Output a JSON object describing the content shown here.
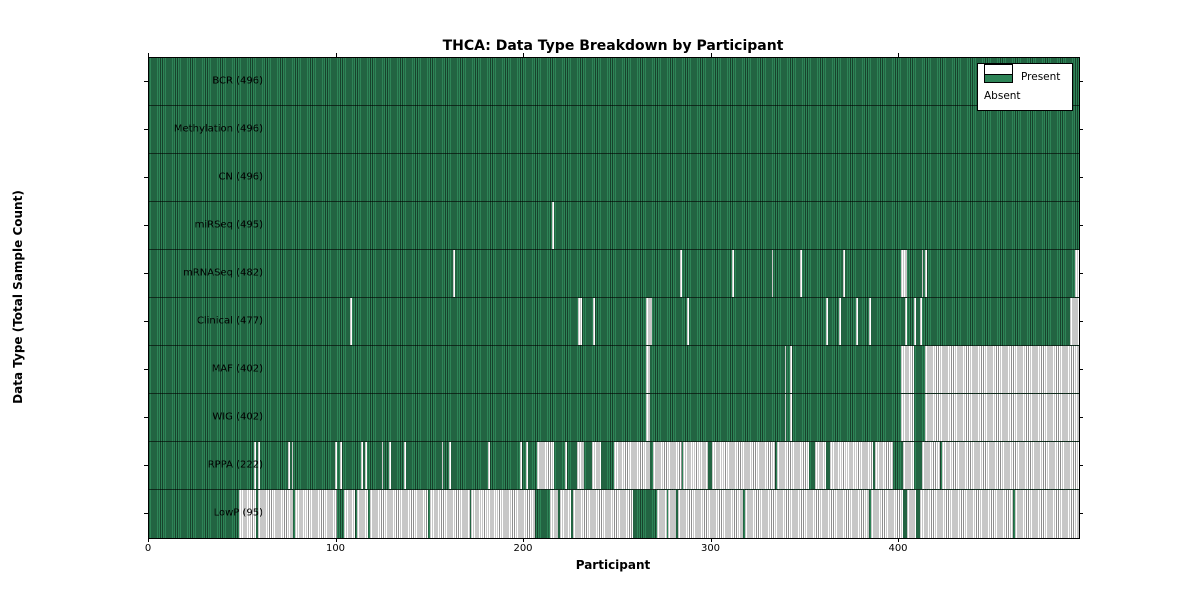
{
  "title": "THCA: Data Type Breakdown by Participant",
  "xlabel": "Participant",
  "ylabel": "Data Type (Total Sample Count)",
  "legend": {
    "present_label": "Present",
    "absent_label": "Absent"
  },
  "colors": {
    "present": "#2e8457",
    "present_stripe": "#17432c",
    "absent_bg": "#ffffff",
    "absent_stripe": "#8f8f8f"
  },
  "chart_data": {
    "type": "heatmap",
    "title": "THCA: Data Type Breakdown by Participant",
    "xlabel": "Participant",
    "ylabel": "Data Type (Total Sample Count)",
    "x_ticks": [
      0,
      100,
      200,
      300,
      400
    ],
    "x_max": 496,
    "n_participants": 496,
    "legend_entries": [
      "Present",
      "Absent"
    ],
    "legend_position": "upper right",
    "rows": [
      {
        "name": "BCR",
        "label": "BCR (496)",
        "count": 496,
        "absent_ranges": []
      },
      {
        "name": "Methylation",
        "label": "Methylation (496)",
        "count": 496,
        "absent_ranges": []
      },
      {
        "name": "CN",
        "label": "CN (496)",
        "count": 496,
        "absent_ranges": []
      },
      {
        "name": "miRSeq",
        "label": "miRSeq (495)",
        "count": 495,
        "absent_ranges": [
          [
            215,
            216
          ]
        ]
      },
      {
        "name": "mRNASeq",
        "label": "mRNASeq (482)",
        "count": 482,
        "absent_ranges": [
          [
            162,
            163
          ],
          [
            283,
            284
          ],
          [
            311,
            312
          ],
          [
            332,
            333
          ],
          [
            347,
            348
          ],
          [
            370,
            371
          ],
          [
            401,
            404
          ],
          [
            412,
            413
          ],
          [
            414,
            415
          ],
          [
            494,
            496
          ]
        ]
      },
      {
        "name": "Clinical",
        "label": "Clinical (477)",
        "count": 477,
        "absent_ranges": [
          [
            107,
            108
          ],
          [
            229,
            231
          ],
          [
            237,
            238
          ],
          [
            265,
            268
          ],
          [
            287,
            288
          ],
          [
            361,
            362
          ],
          [
            368,
            369
          ],
          [
            377,
            378
          ],
          [
            384,
            385
          ],
          [
            403,
            404
          ],
          [
            408,
            409
          ],
          [
            411,
            412
          ],
          [
            491,
            496
          ]
        ]
      },
      {
        "name": "MAF",
        "label": "MAF (402)",
        "count": 402,
        "absent_ranges": [
          [
            265,
            267
          ],
          [
            339,
            340
          ],
          [
            342,
            343
          ],
          [
            401,
            408
          ],
          [
            414,
            496
          ]
        ]
      },
      {
        "name": "WIG",
        "label": "WIG (402)",
        "count": 402,
        "absent_ranges": [
          [
            265,
            267
          ],
          [
            339,
            340
          ],
          [
            342,
            343
          ],
          [
            401,
            408
          ],
          [
            414,
            496
          ]
        ]
      },
      {
        "name": "RPPA",
        "label": "RPPA (222)",
        "count": 222,
        "absent_ranges": [
          [
            56,
            57
          ],
          [
            58,
            59
          ],
          [
            74,
            75
          ],
          [
            76,
            77
          ],
          [
            99,
            100
          ],
          [
            102,
            103
          ],
          [
            113,
            114
          ],
          [
            115,
            116
          ],
          [
            124,
            125
          ],
          [
            128,
            129
          ],
          [
            136,
            137
          ],
          [
            156,
            157
          ],
          [
            160,
            161
          ],
          [
            181,
            182
          ],
          [
            198,
            199
          ],
          [
            201,
            202
          ],
          [
            207,
            216
          ],
          [
            222,
            223
          ],
          [
            228,
            232
          ],
          [
            236,
            241
          ],
          [
            248,
            267
          ],
          [
            269,
            284
          ],
          [
            285,
            298
          ],
          [
            300,
            334
          ],
          [
            335,
            352
          ],
          [
            355,
            361
          ],
          [
            363,
            386
          ],
          [
            387,
            397
          ],
          [
            402,
            408
          ],
          [
            412,
            422
          ],
          [
            423,
            496
          ]
        ]
      },
      {
        "name": "LowP",
        "label": "LowP (95)",
        "count": 95,
        "absent_ranges": [
          [
            48,
            57
          ],
          [
            58,
            77
          ],
          [
            78,
            100
          ],
          [
            104,
            110
          ],
          [
            111,
            117
          ],
          [
            118,
            149
          ],
          [
            150,
            171
          ],
          [
            172,
            206
          ],
          [
            214,
            218
          ],
          [
            219,
            225
          ],
          [
            226,
            258
          ],
          [
            271,
            276
          ],
          [
            277,
            281
          ],
          [
            282,
            317
          ],
          [
            318,
            384
          ],
          [
            385,
            402
          ],
          [
            404,
            409
          ],
          [
            411,
            461
          ],
          [
            462,
            496
          ]
        ]
      }
    ]
  }
}
